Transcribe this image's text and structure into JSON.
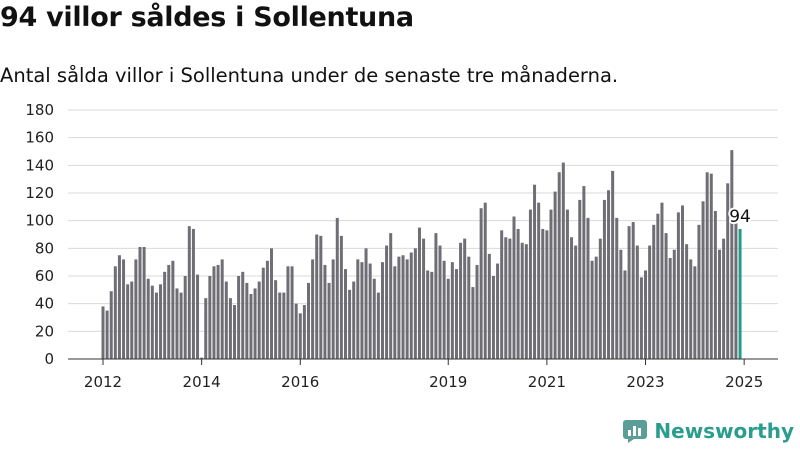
{
  "title": "94 villor såldes i Sollentuna",
  "subtitle": "Antal sålda villor i Sollentuna under de senaste tre månaderna.",
  "brand": {
    "name": "Newsworthy",
    "icon": "newsworthy-logo-icon",
    "color": "#2a9d8f"
  },
  "colors": {
    "bar": "#6e6e74",
    "highlight": "#1e9c8c",
    "grid": "#d9d9d9"
  },
  "chart_data": {
    "type": "bar",
    "x_start": "2012-01",
    "x_end": "2025-01",
    "frequency": "monthly",
    "x_tick_labels": [
      "2012",
      "2014",
      "2016",
      "2019",
      "2021",
      "2023",
      "2025"
    ],
    "y_ticks": [
      0,
      20,
      40,
      60,
      80,
      100,
      120,
      140,
      160,
      180
    ],
    "ylim": [
      0,
      180
    ],
    "grid": true,
    "values": [
      38,
      35,
      49,
      67,
      75,
      72,
      54,
      56,
      72,
      81,
      81,
      58,
      53,
      48,
      54,
      63,
      68,
      71,
      51,
      48,
      60,
      96,
      94,
      61,
      1,
      44,
      60,
      67,
      68,
      72,
      56,
      44,
      39,
      60,
      63,
      55,
      47,
      51,
      56,
      66,
      71,
      80,
      57,
      48,
      48,
      67,
      67,
      40,
      33,
      39,
      55,
      72,
      90,
      89,
      68,
      55,
      72,
      102,
      89,
      65,
      50,
      56,
      72,
      70,
      80,
      69,
      58,
      48,
      70,
      82,
      91,
      67,
      74,
      75,
      72,
      77,
      80,
      95,
      87,
      64,
      63,
      91,
      82,
      71,
      58,
      70,
      65,
      84,
      87,
      74,
      52,
      68,
      109,
      113,
      76,
      60,
      69,
      93,
      88,
      87,
      103,
      94,
      84,
      83,
      108,
      126,
      113,
      94,
      93,
      108,
      121,
      135,
      142,
      108,
      88,
      82,
      115,
      125,
      102,
      71,
      74,
      87,
      115,
      122,
      136,
      102,
      79,
      64,
      96,
      99,
      82,
      59,
      64,
      82,
      97,
      105,
      113,
      91,
      73,
      79,
      106,
      111,
      83,
      72,
      67,
      97,
      114,
      135,
      134,
      107,
      79,
      87,
      127,
      151,
      103,
      94
    ],
    "highlight_last": true,
    "annotation": "94"
  }
}
